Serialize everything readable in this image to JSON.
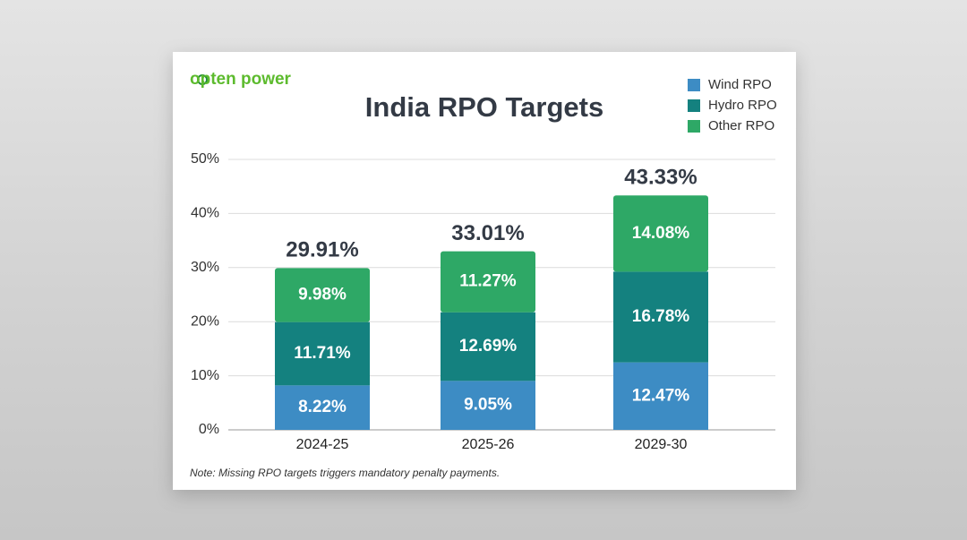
{
  "chart_data": {
    "type": "stacked-bar",
    "logo": "opten power",
    "title": "India RPO Targets",
    "note": "Note: Missing RPO targets triggers mandatory penalty payments.",
    "categories": [
      "2024-25",
      "2025-26",
      "2029-30"
    ],
    "series": [
      {
        "name": "Wind RPO",
        "color": "#3d8cc4",
        "values": [
          8.22,
          9.05,
          12.47
        ],
        "value_labels": [
          "8.22%",
          "9.05%",
          "12.47%"
        ]
      },
      {
        "name": "Hydro RPO",
        "color": "#14817f",
        "values": [
          11.71,
          12.69,
          16.78
        ],
        "value_labels": [
          "11.71%",
          "12.69%",
          "16.78%"
        ]
      },
      {
        "name": "Other RPO",
        "color": "#2ea866",
        "values": [
          9.98,
          11.27,
          14.08
        ],
        "value_labels": [
          "9.98%",
          "11.27%",
          "14.08%"
        ]
      }
    ],
    "totals": {
      "values": [
        29.91,
        33.01,
        43.33
      ],
      "value_labels": [
        "29.91%",
        "33.01%",
        "43.33%"
      ]
    },
    "ylim": [
      0,
      50
    ],
    "yticks": [
      {
        "value": 0,
        "label": "0%"
      },
      {
        "value": 10,
        "label": "10%"
      },
      {
        "value": 20,
        "label": "20%"
      },
      {
        "value": 30,
        "label": "30%"
      },
      {
        "value": 40,
        "label": "40%"
      },
      {
        "value": 50,
        "label": "50%"
      }
    ],
    "grid": true,
    "legend": "top-right"
  }
}
